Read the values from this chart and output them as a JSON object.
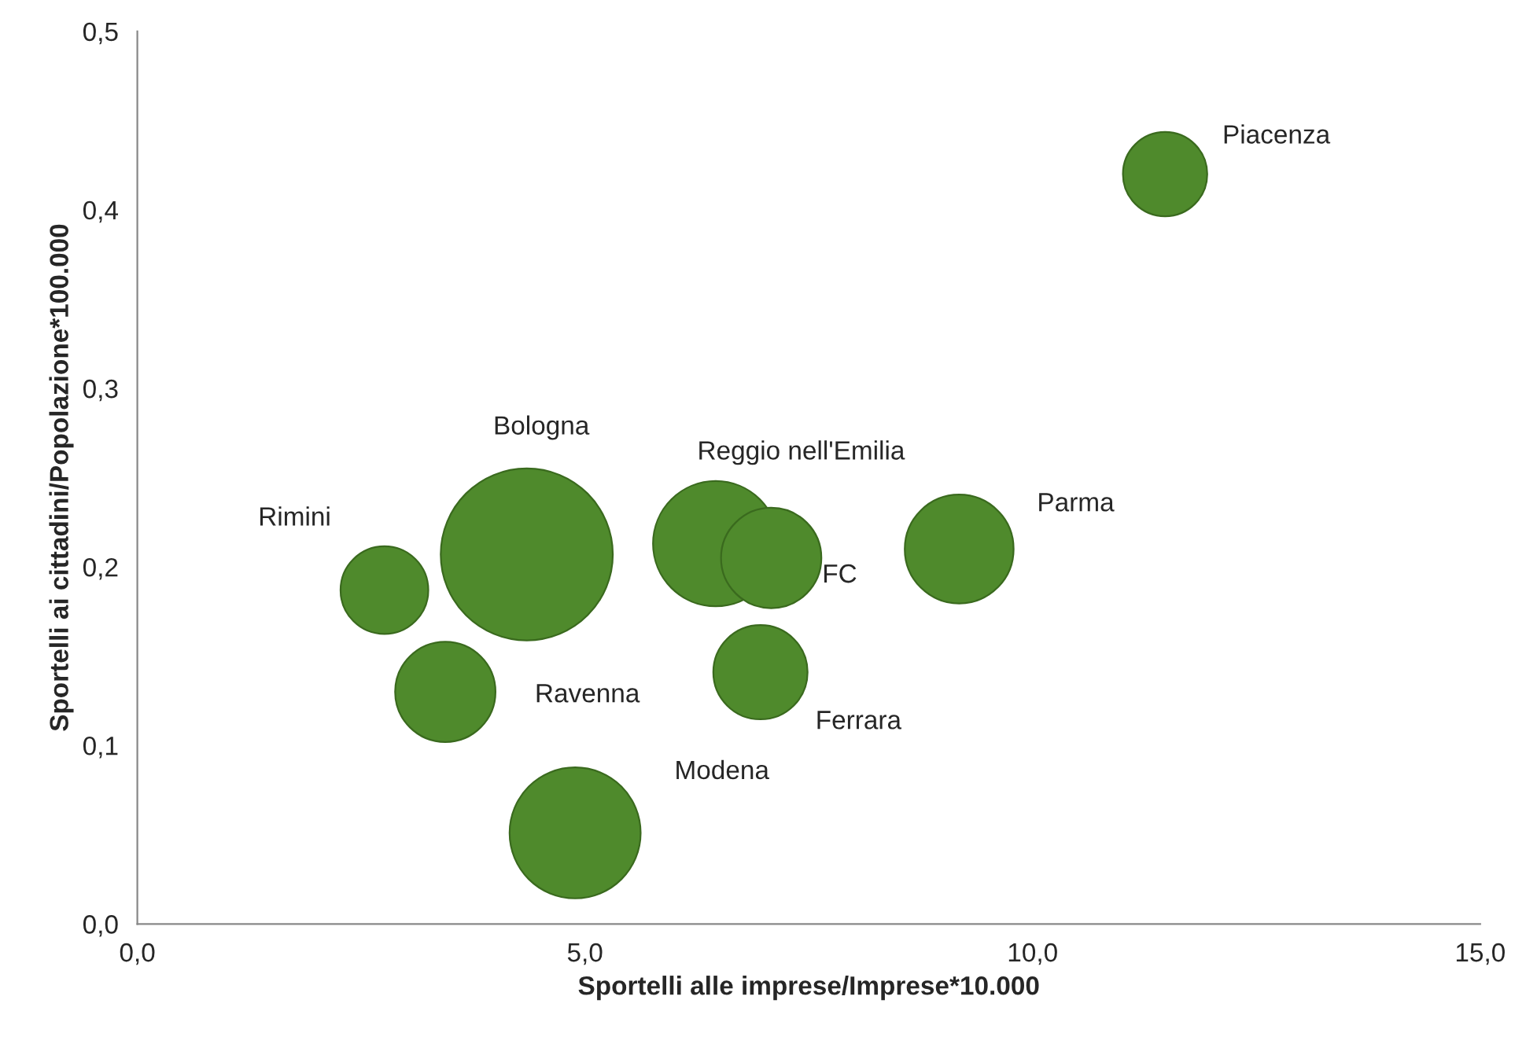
{
  "chart_data": {
    "type": "bubble",
    "xlabel": "Sportelli alle imprese/Imprese*10.000",
    "ylabel": "Sportelli ai cittadini/Popolazione*100.000",
    "x": [
      11.48,
      4.35,
      2.76,
      3.44,
      4.89,
      6.46,
      7.08,
      6.96,
      9.18
    ],
    "values": [
      0.42,
      0.207,
      0.187,
      0.13,
      0.051,
      0.213,
      0.205,
      0.141,
      0.21
    ],
    "sizes": [
      0.24,
      1,
      0.26,
      0.34,
      0.58,
      0.53,
      0.34,
      0.3,
      0.4
    ],
    "color": "#4f8a2c",
    "annotations": [
      "Piacenza",
      "Bologna",
      "Rimini",
      "Ravenna",
      "Modena",
      "Reggio nell'Emilia",
      "FC",
      "Ferrara",
      "Parma"
    ],
    "xlim": [
      0,
      15
    ],
    "xticks": [
      {
        "value": 0,
        "label": "0,0"
      },
      {
        "value": 5,
        "label": "5,0"
      },
      {
        "value": 10,
        "label": "10,0"
      },
      {
        "value": 15,
        "label": "15,0"
      }
    ],
    "ylim": [
      0,
      0.5
    ],
    "yticks": [
      {
        "value": 0,
        "label": "0,0"
      },
      {
        "value": 0.1,
        "label": "0,1"
      },
      {
        "value": 0.2,
        "label": "0,2"
      },
      {
        "value": 0.3,
        "label": "0,3"
      },
      {
        "value": 0.4,
        "label": "0,4"
      },
      {
        "value": 0.5,
        "label": "0,5"
      }
    ],
    "grid": false
  }
}
